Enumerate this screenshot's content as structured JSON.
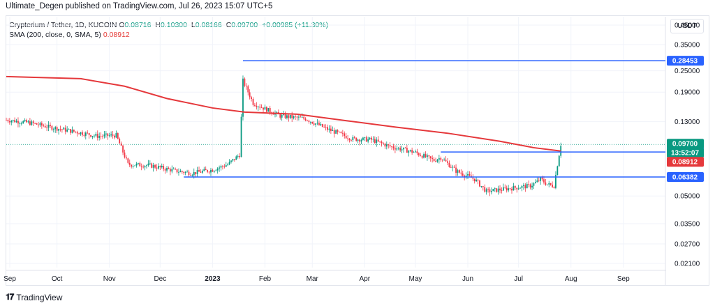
{
  "caption": "Ultimate_Degen published on TradingView.com, Jul 26, 2023 15:07 UTC+5",
  "legend": {
    "symbol": "Crypterium / Tether, 1D, KUCOIN",
    "o_label": "O",
    "o_value": "0.08716",
    "h_label": "H",
    "h_value": "0.10300",
    "l_label": "L",
    "l_value": "0.08166",
    "c_label": "C",
    "c_value": "0.09700",
    "change": "+0.00985 (+11.30%)",
    "sma_label": "SMA (200, close, 0, SMA, 5)",
    "sma_value": "0.08912"
  },
  "currency_button": "USDT",
  "footer_brand": "TradingView",
  "colors": {
    "up": "#089981",
    "down": "#f23645",
    "sma": "#e5383b",
    "level_line": "#2962ff",
    "grid": "#f0f3fa"
  },
  "chart_data": {
    "type": "candlestick",
    "scale": "log",
    "ylim": [
      0.018,
      0.5
    ],
    "y_ticks": [
      "0.45000",
      "0.35000",
      "0.25000",
      "0.19000",
      "0.13000",
      "0.05000",
      "0.03500",
      "0.02700",
      "0.02100"
    ],
    "x_ticks": [
      "Sep",
      "Oct",
      "Nov",
      "Dec",
      "2023",
      "Feb",
      "Mar",
      "Apr",
      "May",
      "Jun",
      "Jul",
      "Aug",
      "Sep"
    ],
    "x_range": [
      "2022-09-01",
      "2023-09-30"
    ],
    "horizontal_levels": [
      {
        "value": 0.28453,
        "label": "0.28453",
        "start": "2023-01-19"
      },
      {
        "value": 0.08795,
        "label": "0.08795",
        "start": "2023-05-16"
      },
      {
        "value": 0.06382,
        "label": "0.06382",
        "start": "2022-12-15"
      }
    ],
    "price_badges": [
      {
        "label": "0.09700",
        "value": 0.097,
        "color": "#089981"
      },
      {
        "label": "13:52:07",
        "value": 0.0905,
        "color": "#089981"
      },
      {
        "label": "0.08912",
        "value": 0.08912,
        "color": "#e5383b"
      }
    ],
    "sma_path": [
      [
        "2022-09-01",
        0.232
      ],
      [
        "2022-10-15",
        0.226
      ],
      [
        "2022-11-10",
        0.205
      ],
      [
        "2022-12-05",
        0.175
      ],
      [
        "2023-01-01",
        0.155
      ],
      [
        "2023-01-20",
        0.147
      ],
      [
        "2023-02-20",
        0.143
      ],
      [
        "2023-03-20",
        0.132
      ],
      [
        "2023-04-20",
        0.121
      ],
      [
        "2023-05-20",
        0.112
      ],
      [
        "2023-06-20",
        0.101
      ],
      [
        "2023-07-10",
        0.093
      ],
      [
        "2023-07-26",
        0.08912
      ]
    ],
    "price_path": [
      [
        "2022-09-01",
        0.133
      ],
      [
        "2022-09-15",
        0.128
      ],
      [
        "2022-09-25",
        0.122
      ],
      [
        "2022-10-10",
        0.115
      ],
      [
        "2022-10-25",
        0.108
      ],
      [
        "2022-11-05",
        0.109
      ],
      [
        "2022-11-12",
        0.075
      ],
      [
        "2022-11-25",
        0.074
      ],
      [
        "2022-12-10",
        0.069
      ],
      [
        "2022-12-20",
        0.067
      ],
      [
        "2023-01-01",
        0.07
      ],
      [
        "2023-01-10",
        0.075
      ],
      [
        "2023-01-17",
        0.085
      ],
      [
        "2023-01-19",
        0.22
      ],
      [
        "2023-01-25",
        0.165
      ],
      [
        "2023-02-10",
        0.14
      ],
      [
        "2023-02-25",
        0.135
      ],
      [
        "2023-03-10",
        0.118
      ],
      [
        "2023-03-25",
        0.104
      ],
      [
        "2023-04-05",
        0.103
      ],
      [
        "2023-04-15",
        0.095
      ],
      [
        "2023-04-30",
        0.088
      ],
      [
        "2023-05-12",
        0.079
      ],
      [
        "2023-05-16",
        0.082
      ],
      [
        "2023-05-25",
        0.069
      ],
      [
        "2023-06-05",
        0.062
      ],
      [
        "2023-06-12",
        0.053
      ],
      [
        "2023-06-25",
        0.055
      ],
      [
        "2023-07-08",
        0.057
      ],
      [
        "2023-07-12",
        0.06
      ],
      [
        "2023-07-14",
        0.062
      ],
      [
        "2023-07-18",
        0.058
      ],
      [
        "2023-07-22",
        0.057
      ],
      [
        "2023-07-24",
        0.075
      ],
      [
        "2023-07-26",
        0.097
      ]
    ]
  }
}
